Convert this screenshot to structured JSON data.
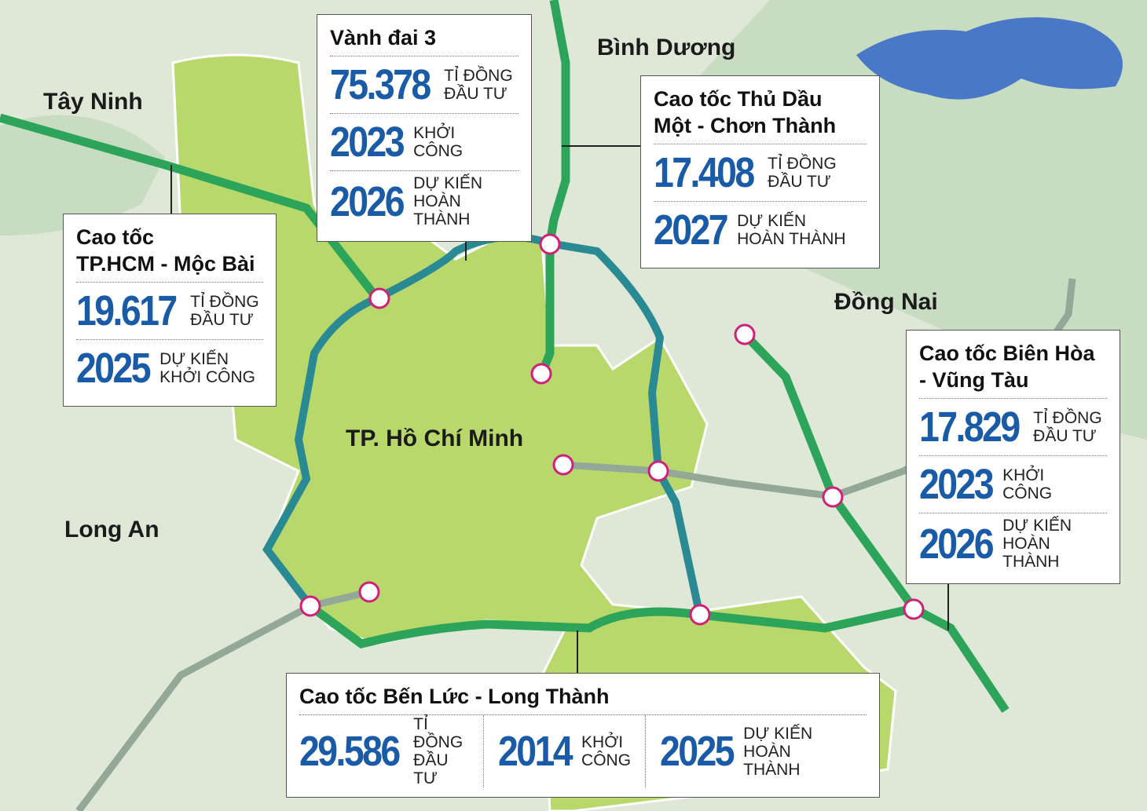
{
  "regions": [
    {
      "label": "Tây Ninh"
    },
    {
      "label": "Bình Dương"
    },
    {
      "label": "Đồng Nai"
    },
    {
      "label": "Long An"
    },
    {
      "label": "TP. Hồ Chí Minh"
    }
  ],
  "projects": [
    {
      "title": [
        "Vành đai 3"
      ],
      "stats": [
        {
          "value": "75.378",
          "label": [
            "TỈ ĐỒNG",
            "ĐẦU TƯ"
          ]
        },
        {
          "value": "2023",
          "label": [
            "KHỞI",
            "CÔNG"
          ]
        },
        {
          "value": "2026",
          "label": [
            "DỰ KIẾN",
            "HOÀN THÀNH"
          ]
        }
      ]
    },
    {
      "title": [
        "Cao tốc Thủ Dầu",
        "Một - Chơn Thành"
      ],
      "stats": [
        {
          "value": "17.408",
          "label": [
            "TỈ ĐỒNG",
            "ĐẦU TƯ"
          ]
        },
        {
          "value": "2027",
          "label": [
            "DỰ KIẾN",
            "HOÀN THÀNH"
          ]
        }
      ]
    },
    {
      "title": [
        "Cao tốc",
        "TP.HCM - Mộc Bài"
      ],
      "stats": [
        {
          "value": "19.617",
          "label": [
            "TỈ ĐỒNG",
            "ĐẦU TƯ"
          ]
        },
        {
          "value": "2025",
          "label": [
            "DỰ KIẾN",
            "KHỞI CÔNG"
          ]
        }
      ]
    },
    {
      "title": [
        "Cao tốc Biên Hòa",
        " - Vũng Tàu"
      ],
      "stats": [
        {
          "value": "17.829",
          "label": [
            "TỈ ĐỒNG",
            "ĐẦU TƯ"
          ]
        },
        {
          "value": "2023",
          "label": [
            "KHỞI",
            "CÔNG"
          ]
        },
        {
          "value": "2026",
          "label": [
            "DỰ KIẾN",
            "HOÀN THÀNH"
          ]
        }
      ]
    },
    {
      "title": [
        "Cao tốc Bến Lức - Long Thành"
      ],
      "stats": [
        {
          "value": "29.586",
          "label": [
            "TỈ ĐỒNG",
            "ĐẦU TƯ"
          ]
        },
        {
          "value": "2014",
          "label": [
            "KHỞI",
            "CÔNG"
          ]
        },
        {
          "value": "2025",
          "label": [
            "DỰ KIẾN",
            "HOÀN THÀNH"
          ]
        }
      ]
    }
  ]
}
